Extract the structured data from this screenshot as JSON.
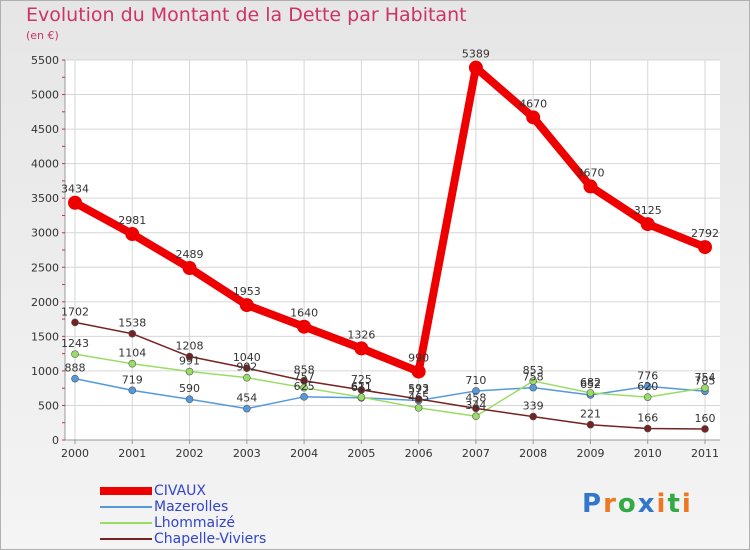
{
  "title": "Evolution du Montant de la Dette par Habitant",
  "subtitle": "(en €)",
  "logo": {
    "text": "Proxiti",
    "letters": [
      "P",
      "r",
      "o",
      "x",
      "i",
      "t",
      "i"
    ],
    "colors": [
      "#3377cc",
      "#ee7722",
      "#33aa44",
      "#3377cc",
      "#ee7722",
      "#33aa44",
      "#ee7722"
    ]
  },
  "chart_data": {
    "type": "line",
    "title": "Evolution du Montant de la Dette par Habitant",
    "ylabel": "(en €)",
    "xlabel": "",
    "ylim": [
      0,
      5500
    ],
    "yticks": [
      "0",
      "500",
      "1000",
      "1500",
      "2000",
      "2500",
      "3000",
      "3500",
      "4000",
      "4500",
      "5000",
      "5500"
    ],
    "grid": true,
    "legend": "bottom-left",
    "x": [
      "2000",
      "2001",
      "2002",
      "2003",
      "2004",
      "2005",
      "2006",
      "2007",
      "2008",
      "2009",
      "2010",
      "2011"
    ],
    "series": [
      {
        "name": "CIVAUX",
        "color": "#ee0000",
        "bold": true,
        "values": [
          3434,
          2981,
          2489,
          1953,
          1640,
          1326,
          990,
          5389,
          4670,
          3670,
          3125,
          2792
        ]
      },
      {
        "name": "Mazerolles",
        "color": "#5599dd",
        "bold": false,
        "values": [
          888,
          719,
          590,
          454,
          625,
          611,
          572,
          710,
          758,
          652,
          776,
          705
        ]
      },
      {
        "name": "Lhommaizé",
        "color": "#99dd66",
        "bold": false,
        "values": [
          1243,
          1104,
          991,
          902,
          757,
          621,
          465,
          344,
          853,
          682,
          620,
          754
        ]
      },
      {
        "name": "Chapelle-Viviers",
        "color": "#772222",
        "bold": false,
        "values": [
          1702,
          1538,
          1208,
          1040,
          858,
          725,
          593,
          458,
          339,
          221,
          166,
          160
        ]
      }
    ]
  }
}
